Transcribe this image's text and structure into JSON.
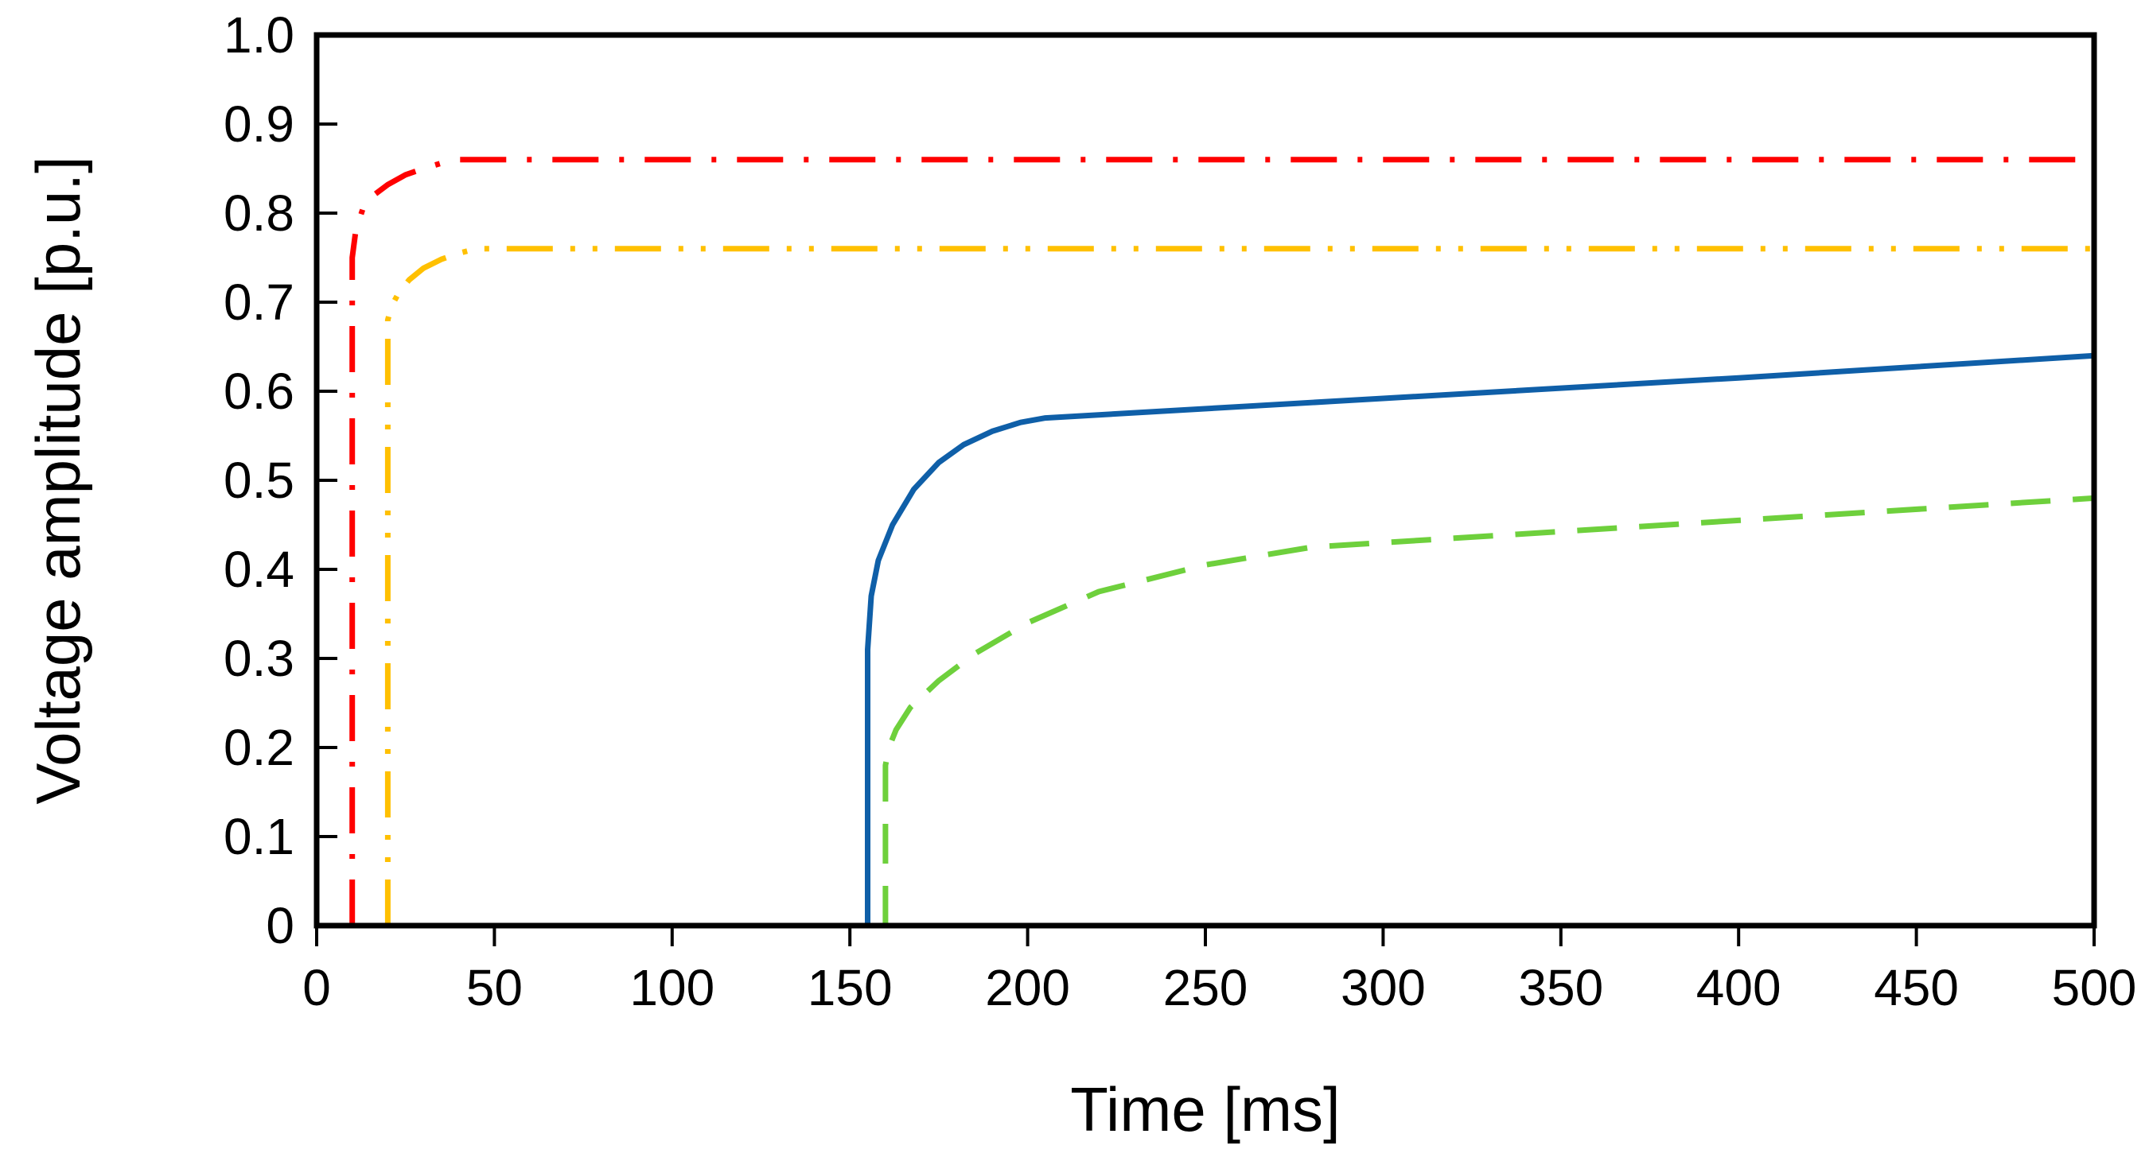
{
  "chart_data": {
    "type": "line",
    "title": "",
    "xlabel": "Time [ms]",
    "ylabel": "Voltage amplitude [p.u.]",
    "xlim": [
      0,
      500
    ],
    "ylim": [
      0,
      1.0
    ],
    "x_ticks": [
      0,
      50,
      100,
      150,
      200,
      250,
      300,
      350,
      400,
      450,
      500
    ],
    "x_tick_labels": [
      "0",
      "50",
      "100",
      "150",
      "200",
      "250",
      "300",
      "350",
      "400",
      "450",
      "500"
    ],
    "y_ticks": [
      0,
      0.1,
      0.2,
      0.3,
      0.4,
      0.5,
      0.6,
      0.7,
      0.8,
      0.9,
      1.0
    ],
    "y_tick_labels": [
      "0",
      "0.1",
      "0.2",
      "0.3",
      "0.4",
      "0.5",
      "0.6",
      "0.7",
      "0.8",
      "0.9",
      "1.0"
    ],
    "grid": false,
    "legend": "none",
    "series": [
      {
        "color": "#ff0000",
        "line_style": "dash-dot",
        "points": [
          [
            10,
            0
          ],
          [
            10,
            0.45
          ],
          [
            10,
            0.75
          ],
          [
            11,
            0.78
          ],
          [
            13,
            0.805
          ],
          [
            16,
            0.82
          ],
          [
            20,
            0.832
          ],
          [
            25,
            0.843
          ],
          [
            30,
            0.85
          ],
          [
            35,
            0.856
          ],
          [
            40,
            0.86
          ],
          [
            500,
            0.86
          ]
        ]
      },
      {
        "color": "#ffc000",
        "line_style": "dash-dot-dot",
        "points": [
          [
            20,
            0
          ],
          [
            20,
            0.4
          ],
          [
            20,
            0.68
          ],
          [
            21,
            0.695
          ],
          [
            23,
            0.71
          ],
          [
            26,
            0.725
          ],
          [
            30,
            0.738
          ],
          [
            35,
            0.748
          ],
          [
            40,
            0.755
          ],
          [
            45,
            0.76
          ],
          [
            500,
            0.76
          ]
        ]
      },
      {
        "color": "#0f5fa8",
        "line_style": "solid",
        "points": [
          [
            155,
            0
          ],
          [
            155,
            0.31
          ],
          [
            156,
            0.37
          ],
          [
            158,
            0.41
          ],
          [
            162,
            0.45
          ],
          [
            168,
            0.49
          ],
          [
            175,
            0.52
          ],
          [
            182,
            0.54
          ],
          [
            190,
            0.555
          ],
          [
            198,
            0.565
          ],
          [
            205,
            0.57
          ],
          [
            300,
            0.592
          ],
          [
            400,
            0.615
          ],
          [
            500,
            0.64
          ]
        ]
      },
      {
        "color": "#6ed03c",
        "line_style": "dashed",
        "points": [
          [
            160,
            0
          ],
          [
            160,
            0.18
          ],
          [
            161,
            0.2
          ],
          [
            163,
            0.22
          ],
          [
            167,
            0.245
          ],
          [
            175,
            0.275
          ],
          [
            185,
            0.305
          ],
          [
            200,
            0.34
          ],
          [
            220,
            0.375
          ],
          [
            250,
            0.405
          ],
          [
            280,
            0.425
          ],
          [
            320,
            0.435
          ],
          [
            400,
            0.455
          ],
          [
            500,
            0.48
          ]
        ]
      }
    ]
  }
}
